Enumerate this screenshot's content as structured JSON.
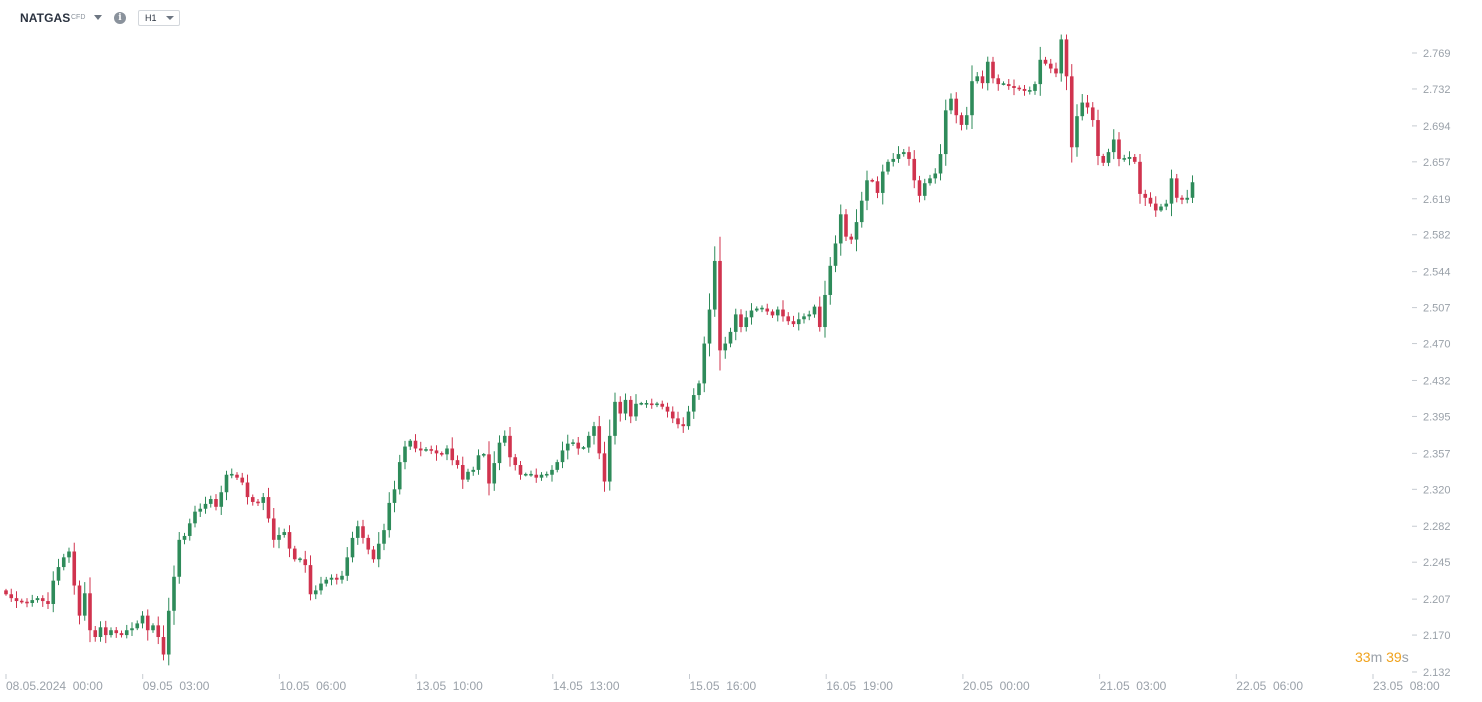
{
  "header": {
    "symbol": "NATGAS",
    "symbol_type": "CFD",
    "info_icon": "i",
    "timeframe": "H1"
  },
  "countdown": {
    "minutes": "33",
    "minutes_unit": "m",
    "seconds": "39",
    "seconds_unit": "s"
  },
  "colors": {
    "up": "#2e8b5a",
    "down": "#d0334e",
    "axis_text": "#9aa1a9",
    "countdown": "#f0a21c"
  },
  "chart_data": {
    "type": "candlestick",
    "ylim": [
      2.132,
      2.788
    ],
    "y_ticks": [
      "2.769",
      "2.732",
      "2.694",
      "2.657",
      "2.619",
      "2.582",
      "2.544",
      "2.507",
      "2.470",
      "2.432",
      "2.395",
      "2.357",
      "2.320",
      "2.282",
      "2.245",
      "2.207",
      "2.170",
      "2.132"
    ],
    "x_ticks": [
      "08.05.2024  00:00",
      "09.05  03:00",
      "10.05  06:00",
      "13.05  10:00",
      "14.05  13:00",
      "15.05  16:00",
      "16.05  19:00",
      "20.05  00:00",
      "21.05  03:00",
      "22.05  06:00",
      "23.05  08:00"
    ],
    "closes": [
      2.212,
      2.208,
      2.205,
      2.204,
      2.203,
      2.206,
      2.208,
      2.205,
      2.202,
      2.226,
      2.24,
      2.25,
      2.256,
      2.221,
      2.19,
      2.213,
      2.175,
      2.168,
      2.178,
      2.17,
      2.175,
      2.172,
      2.17,
      2.175,
      2.177,
      2.182,
      2.19,
      2.175,
      2.18,
      2.168,
      2.15,
      2.195,
      2.23,
      2.268,
      2.272,
      2.285,
      2.297,
      2.3,
      2.305,
      2.31,
      2.302,
      2.317,
      2.335,
      2.335,
      2.332,
      2.327,
      2.312,
      2.307,
      2.306,
      2.312,
      2.29,
      2.268,
      2.273,
      2.276,
      2.259,
      2.248,
      2.248,
      2.242,
      2.212,
      2.216,
      2.223,
      2.227,
      2.229,
      2.227,
      2.231,
      2.25,
      2.27,
      2.282,
      2.27,
      2.258,
      2.248,
      2.264,
      2.278,
      2.306,
      2.32,
      2.348,
      2.364,
      2.37,
      2.362,
      2.36,
      2.361,
      2.36,
      2.357,
      2.356,
      2.362,
      2.35,
      2.345,
      2.33,
      2.338,
      2.34,
      2.355,
      2.356,
      2.326,
      2.347,
      2.368,
      2.375,
      2.353,
      2.345,
      2.335,
      2.335,
      2.335,
      2.332,
      2.335,
      2.335,
      2.34,
      2.348,
      2.36,
      2.367,
      2.368,
      2.362,
      2.363,
      2.375,
      2.385,
      2.357,
      2.328,
      2.375,
      2.41,
      2.398,
      2.412,
      2.395,
      2.408,
      2.408,
      2.408,
      2.407,
      2.408,
      2.405,
      2.4,
      2.393,
      2.387,
      2.385,
      2.4,
      2.417,
      2.429,
      2.47,
      2.505,
      2.555,
      2.463,
      2.47,
      2.482,
      2.5,
      2.487,
      2.497,
      2.504,
      2.506,
      2.506,
      2.503,
      2.499,
      2.505,
      2.498,
      2.493,
      2.49,
      2.495,
      2.498,
      2.5,
      2.508,
      2.487,
      2.52,
      2.55,
      2.573,
      2.603,
      2.58,
      2.577,
      2.595,
      2.617,
      2.638,
      2.637,
      2.625,
      2.647,
      2.657,
      2.66,
      2.665,
      2.667,
      2.66,
      2.638,
      2.622,
      2.635,
      2.64,
      2.645,
      2.665,
      2.71,
      2.722,
      2.705,
      2.695,
      2.705,
      2.74,
      2.745,
      2.738,
      2.76,
      2.743,
      2.737,
      2.737,
      2.735,
      2.733,
      2.732,
      2.73,
      2.73,
      2.737,
      2.762,
      2.758,
      2.753,
      2.748,
      2.783,
      2.745,
      2.672,
      2.704,
      2.718,
      2.713,
      2.7,
      2.663,
      2.656,
      2.667,
      2.68,
      2.66,
      2.66,
      2.662,
      2.657,
      2.624,
      2.62,
      2.614,
      2.607,
      2.611,
      2.614,
      2.64,
      2.62,
      2.618,
      2.62,
      2.636
    ]
  }
}
